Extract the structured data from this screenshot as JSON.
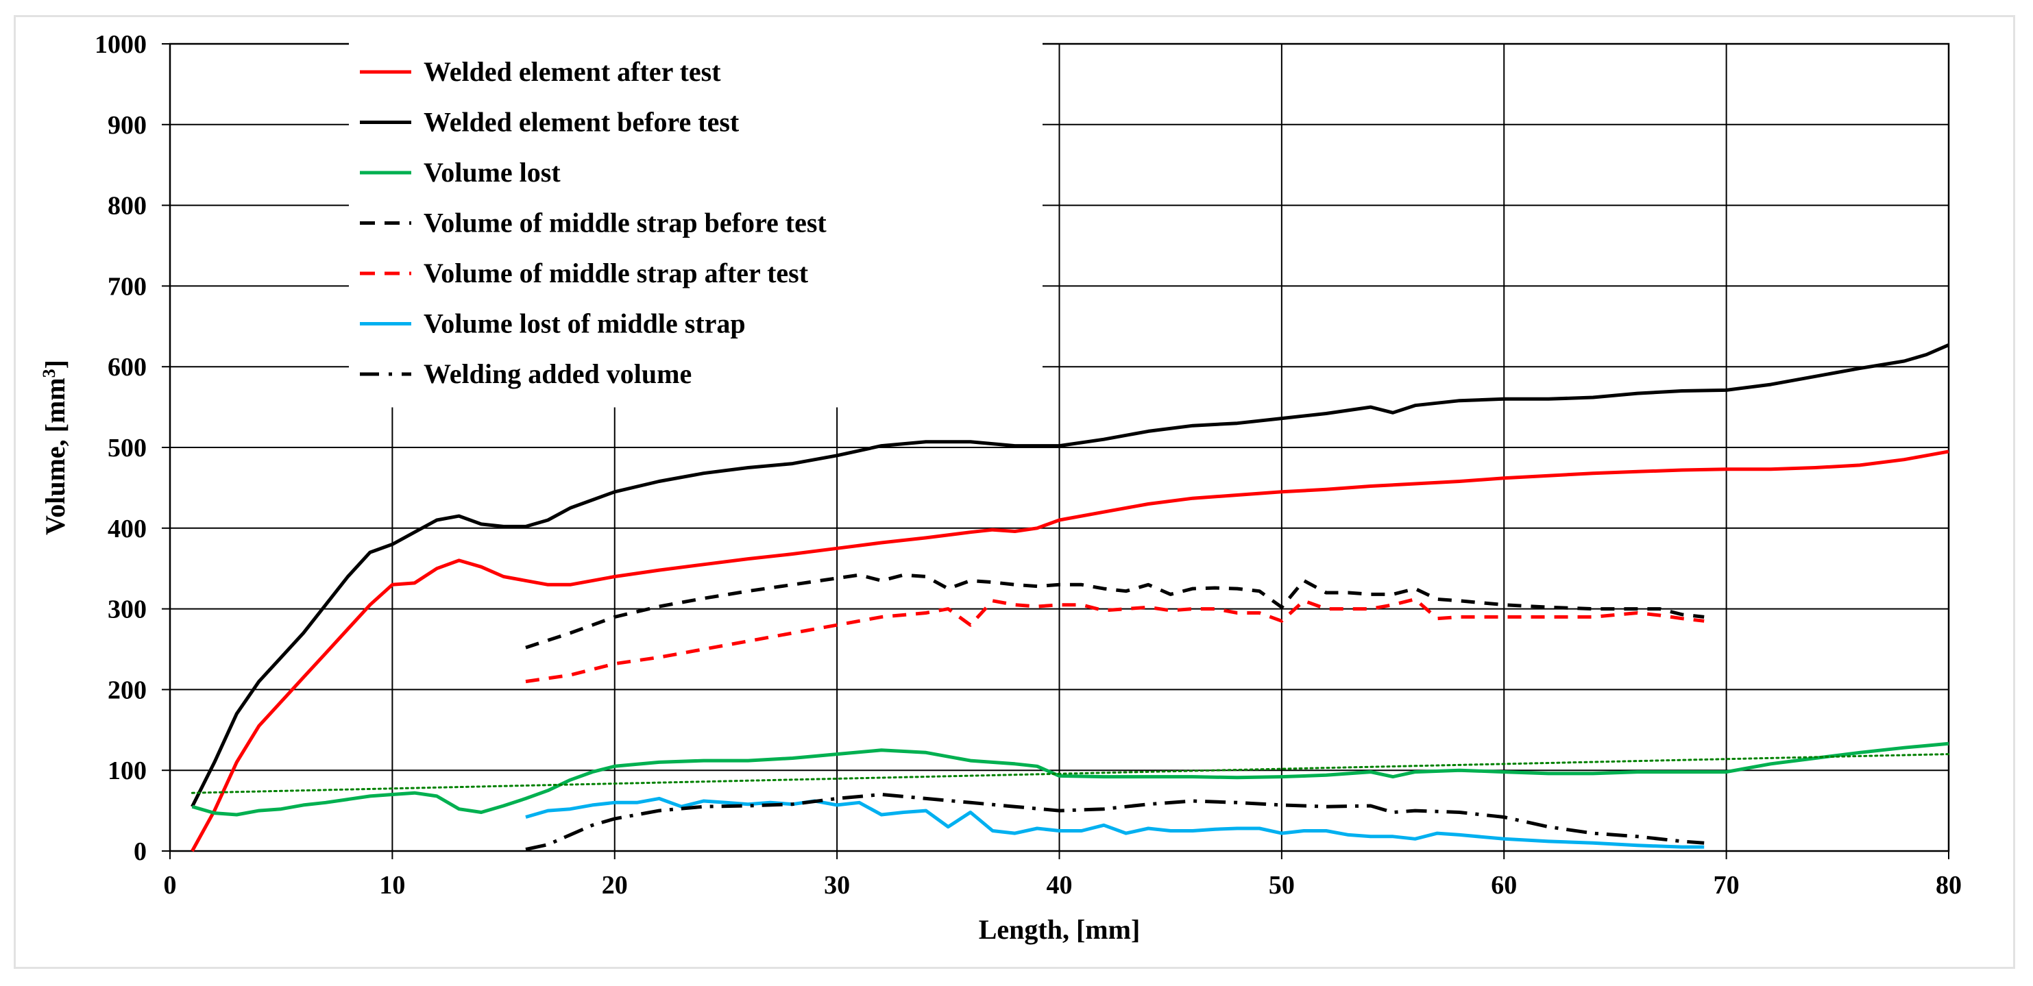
{
  "chart_data": {
    "type": "line",
    "title": "",
    "xlabel": "Length, [mm]",
    "ylabel": "Volume, [mm",
    "ylabel_superscript": "3",
    "ylabel_suffix": "]",
    "xlim": [
      0,
      80
    ],
    "ylim": [
      0,
      1000
    ],
    "x_ticks": [
      "0",
      "10",
      "20",
      "30",
      "40",
      "50",
      "60",
      "70",
      "80"
    ],
    "y_ticks": [
      "0",
      "100",
      "200",
      "300",
      "400",
      "500",
      "600",
      "700",
      "800",
      "900",
      "1000"
    ],
    "grid": true,
    "legend_position": "top-left",
    "series": [
      {
        "name": "Welded element after test",
        "color": "#ff0000",
        "style": "solid",
        "x": [
          1,
          2,
          3,
          4,
          5,
          6,
          7,
          8,
          9,
          10,
          11,
          12,
          13,
          14,
          15,
          16,
          17,
          18,
          19,
          20,
          22,
          24,
          26,
          28,
          30,
          32,
          34,
          36,
          37,
          38,
          39,
          40,
          42,
          44,
          46,
          48,
          50,
          52,
          54,
          56,
          58,
          60,
          62,
          64,
          66,
          68,
          70,
          72,
          74,
          76,
          78,
          79,
          80
        ],
        "values": [
          0,
          50,
          110,
          155,
          185,
          215,
          245,
          275,
          305,
          330,
          332,
          350,
          360,
          352,
          340,
          335,
          330,
          330,
          335,
          340,
          348,
          355,
          362,
          368,
          375,
          382,
          388,
          395,
          398,
          396,
          400,
          410,
          420,
          430,
          437,
          441,
          445,
          448,
          452,
          455,
          458,
          462,
          465,
          468,
          470,
          472,
          473,
          473,
          475,
          478,
          485,
          490,
          495
        ]
      },
      {
        "name": "Welded element before test",
        "color": "#000000",
        "style": "solid",
        "x": [
          1,
          2,
          3,
          4,
          5,
          6,
          7,
          8,
          9,
          10,
          11,
          12,
          13,
          14,
          15,
          16,
          17,
          18,
          19,
          20,
          22,
          24,
          26,
          28,
          30,
          32,
          34,
          36,
          38,
          40,
          42,
          44,
          46,
          48,
          50,
          52,
          54,
          55,
          56,
          58,
          60,
          62,
          64,
          66,
          68,
          70,
          72,
          74,
          76,
          78,
          79,
          80
        ],
        "values": [
          55,
          110,
          170,
          210,
          240,
          270,
          305,
          340,
          370,
          380,
          395,
          410,
          415,
          405,
          402,
          402,
          410,
          425,
          435,
          445,
          458,
          468,
          475,
          480,
          490,
          502,
          507,
          507,
          502,
          502,
          510,
          520,
          527,
          530,
          536,
          542,
          550,
          543,
          552,
          558,
          560,
          560,
          562,
          567,
          570,
          571,
          578,
          588,
          598,
          607,
          615,
          627
        ]
      },
      {
        "name": "Volume lost",
        "color": "#00b050",
        "style": "solid",
        "x": [
          1,
          2,
          3,
          4,
          5,
          6,
          7,
          8,
          9,
          10,
          11,
          12,
          13,
          14,
          15,
          16,
          17,
          18,
          19,
          20,
          22,
          24,
          26,
          28,
          30,
          32,
          34,
          36,
          38,
          39,
          40,
          42,
          44,
          46,
          48,
          50,
          52,
          54,
          55,
          56,
          58,
          60,
          62,
          64,
          66,
          68,
          70,
          72,
          74,
          76,
          78,
          80
        ],
        "values": [
          55,
          47,
          45,
          50,
          52,
          57,
          60,
          64,
          68,
          70,
          72,
          68,
          52,
          48,
          56,
          65,
          75,
          88,
          98,
          105,
          110,
          112,
          112,
          115,
          120,
          125,
          122,
          112,
          108,
          105,
          93,
          92,
          92,
          92,
          91,
          92,
          94,
          98,
          92,
          98,
          100,
          98,
          96,
          96,
          98,
          98,
          98,
          108,
          115,
          122,
          128,
          133
        ]
      },
      {
        "name": "Volume of middle strap before test",
        "color": "#000000",
        "style": "dashed",
        "x": [
          16,
          18,
          20,
          22,
          24,
          26,
          28,
          30,
          31,
          32,
          33,
          34,
          35,
          36,
          37,
          38,
          39,
          40,
          41,
          42,
          43,
          44,
          45,
          46,
          47,
          48,
          49,
          50,
          51,
          52,
          53,
          54,
          55,
          56,
          57,
          58,
          60,
          62,
          64,
          66,
          67,
          68,
          69
        ],
        "values": [
          252,
          270,
          290,
          303,
          313,
          322,
          330,
          338,
          342,
          335,
          342,
          340,
          325,
          335,
          333,
          330,
          328,
          330,
          330,
          325,
          322,
          330,
          318,
          325,
          326,
          325,
          322,
          302,
          335,
          320,
          320,
          318,
          318,
          325,
          312,
          310,
          305,
          302,
          300,
          300,
          300,
          293,
          290
        ]
      },
      {
        "name": "Volume of middle strap after test",
        "color": "#ff0000",
        "style": "dashed",
        "x": [
          16,
          18,
          20,
          22,
          24,
          26,
          28,
          30,
          32,
          34,
          35,
          36,
          37,
          38,
          39,
          40,
          41,
          42,
          43,
          44,
          45,
          46,
          47,
          48,
          49,
          50,
          51,
          52,
          53,
          54,
          55,
          56,
          57,
          58,
          60,
          62,
          64,
          66,
          67,
          68,
          69
        ],
        "values": [
          210,
          218,
          232,
          240,
          250,
          260,
          270,
          280,
          290,
          295,
          300,
          280,
          310,
          305,
          303,
          305,
          305,
          298,
          300,
          302,
          298,
          300,
          300,
          295,
          295,
          285,
          310,
          300,
          300,
          300,
          305,
          312,
          288,
          290,
          290,
          290,
          290,
          295,
          292,
          288,
          285
        ]
      },
      {
        "name": "Volume lost of middle strap",
        "color": "#00b0f0",
        "style": "solid",
        "x": [
          16,
          17,
          18,
          19,
          20,
          21,
          22,
          23,
          24,
          25,
          26,
          27,
          28,
          29,
          30,
          31,
          32,
          33,
          34,
          35,
          36,
          37,
          38,
          39,
          40,
          41,
          42,
          43,
          44,
          45,
          46,
          47,
          48,
          49,
          50,
          51,
          52,
          53,
          54,
          55,
          56,
          57,
          58,
          60,
          62,
          64,
          66,
          68,
          69
        ],
        "values": [
          42,
          50,
          52,
          57,
          60,
          60,
          65,
          55,
          62,
          60,
          58,
          60,
          58,
          62,
          57,
          60,
          45,
          48,
          50,
          30,
          48,
          25,
          22,
          28,
          25,
          25,
          32,
          22,
          28,
          25,
          25,
          27,
          28,
          28,
          22,
          25,
          25,
          20,
          18,
          18,
          15,
          22,
          20,
          15,
          12,
          10,
          7,
          5,
          5
        ]
      },
      {
        "name": "Welding added volume",
        "color": "#000000",
        "style": "dashdot",
        "x": [
          16,
          17,
          18,
          19,
          20,
          22,
          24,
          26,
          28,
          30,
          32,
          34,
          36,
          38,
          40,
          42,
          44,
          46,
          48,
          50,
          52,
          54,
          55,
          56,
          58,
          60,
          62,
          64,
          66,
          68,
          69
        ],
        "values": [
          2,
          8,
          20,
          32,
          40,
          50,
          55,
          56,
          58,
          65,
          70,
          65,
          60,
          55,
          50,
          52,
          58,
          62,
          60,
          57,
          55,
          56,
          48,
          50,
          48,
          42,
          30,
          22,
          18,
          12,
          10
        ]
      },
      {
        "name": "trend-volume-lost",
        "color": "#008000",
        "style": "dotted",
        "x": [
          1,
          80
        ],
        "values": [
          72,
          120
        ]
      }
    ]
  }
}
